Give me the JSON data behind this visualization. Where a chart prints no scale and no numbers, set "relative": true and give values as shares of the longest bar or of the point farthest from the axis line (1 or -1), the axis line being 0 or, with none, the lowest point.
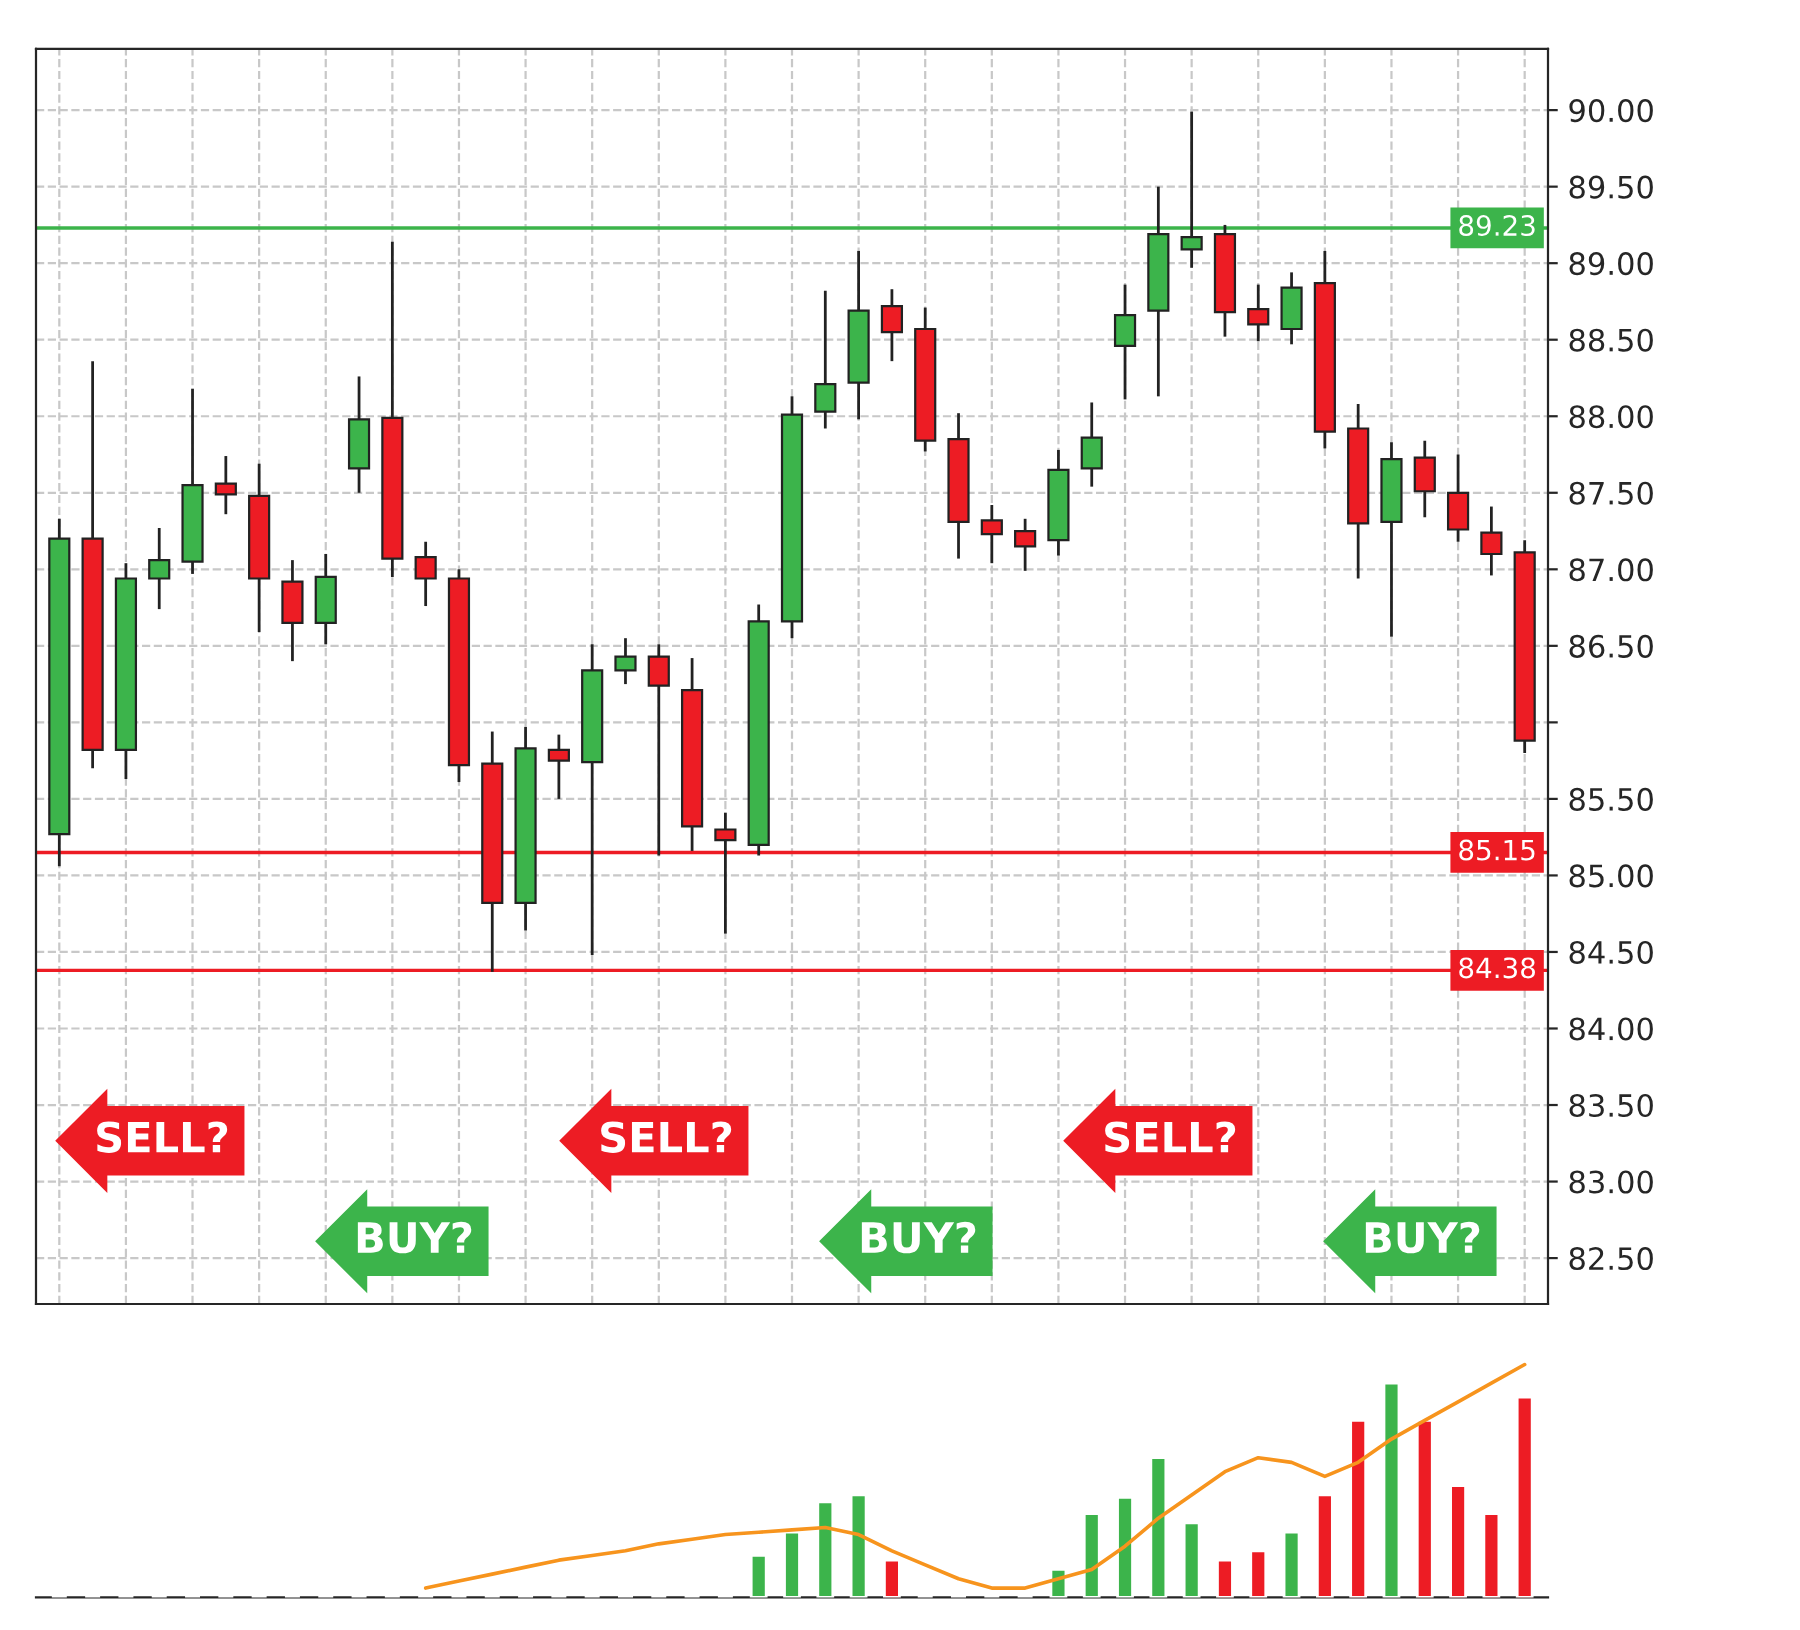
{
  "chart_data": [
    {
      "type": "candlestick",
      "categories": [
        null,
        null,
        null,
        null,
        null,
        null,
        null,
        null,
        null,
        null,
        null,
        null,
        null,
        null,
        null,
        null,
        null,
        null,
        null,
        null,
        null,
        null,
        null,
        null,
        null,
        null,
        null,
        null,
        null,
        null,
        null,
        null,
        null,
        null,
        null,
        null,
        null,
        null,
        null,
        null,
        null,
        null,
        null,
        null,
        null
      ],
      "ohlc": [
        [
          85.27,
          87.33,
          85.06,
          87.2
        ],
        [
          87.2,
          88.36,
          85.7,
          85.82
        ],
        [
          85.82,
          87.04,
          85.63,
          86.94
        ],
        [
          86.94,
          87.27,
          86.74,
          87.06
        ],
        [
          87.05,
          88.18,
          86.97,
          87.55
        ],
        [
          87.56,
          87.74,
          87.36,
          87.49
        ],
        [
          87.48,
          87.69,
          86.59,
          86.94
        ],
        [
          86.92,
          87.06,
          86.4,
          86.65
        ],
        [
          86.65,
          87.1,
          86.51,
          86.95
        ],
        [
          87.66,
          88.26,
          87.5,
          87.98
        ],
        [
          87.99,
          89.14,
          86.95,
          87.07
        ],
        [
          87.08,
          87.18,
          86.76,
          86.94
        ],
        [
          86.94,
          87.0,
          85.61,
          85.72
        ],
        [
          85.73,
          85.94,
          84.37,
          84.82
        ],
        [
          84.82,
          85.97,
          84.64,
          85.83
        ],
        [
          85.82,
          85.92,
          85.5,
          85.75
        ],
        [
          85.74,
          86.51,
          84.48,
          86.34
        ],
        [
          86.34,
          86.55,
          86.25,
          86.43
        ],
        [
          86.43,
          86.51,
          85.13,
          86.24
        ],
        [
          86.21,
          86.42,
          85.16,
          85.32
        ],
        [
          85.3,
          85.41,
          84.62,
          85.23
        ],
        [
          85.2,
          86.77,
          85.13,
          86.66
        ],
        [
          86.66,
          88.13,
          86.55,
          88.01
        ],
        [
          88.03,
          88.82,
          87.92,
          88.21
        ],
        [
          88.22,
          89.08,
          87.98,
          88.69
        ],
        [
          88.72,
          88.83,
          88.36,
          88.55
        ],
        [
          88.57,
          88.71,
          87.77,
          87.84
        ],
        [
          87.85,
          88.02,
          87.07,
          87.31
        ],
        [
          87.32,
          87.42,
          87.04,
          87.23
        ],
        [
          87.25,
          87.33,
          86.99,
          87.15
        ],
        [
          87.19,
          87.78,
          87.09,
          87.65
        ],
        [
          87.66,
          88.09,
          87.54,
          87.86
        ],
        [
          88.46,
          88.86,
          88.11,
          88.66
        ],
        [
          88.69,
          89.5,
          88.13,
          89.19
        ],
        [
          89.09,
          89.99,
          88.97,
          89.17
        ],
        [
          89.19,
          89.25,
          88.52,
          88.68
        ],
        [
          88.7,
          88.86,
          88.49,
          88.6
        ],
        [
          88.57,
          88.94,
          88.47,
          88.84
        ],
        [
          88.87,
          89.08,
          87.79,
          87.9
        ],
        [
          87.92,
          88.08,
          86.94,
          87.3
        ],
        [
          87.31,
          87.83,
          86.56,
          87.72
        ],
        [
          87.73,
          87.84,
          87.34,
          87.51
        ],
        [
          87.5,
          87.75,
          87.18,
          87.26
        ],
        [
          87.24,
          87.41,
          86.96,
          87.1
        ],
        [
          87.11,
          87.19,
          85.8,
          85.88
        ]
      ],
      "colors": [
        "#3cb44b",
        "#ed1c24",
        "#3cb44b",
        "#3cb44b",
        "#3cb44b",
        "#ed1c24",
        "#ed1c24",
        "#ed1c24",
        "#3cb44b",
        "#3cb44b",
        "#ed1c24",
        "#ed1c24",
        "#ed1c24",
        "#ed1c24",
        "#3cb44b",
        "#ed1c24",
        "#3cb44b",
        "#3cb44b",
        "#ed1c24",
        "#ed1c24",
        "#ed1c24",
        "#3cb44b",
        "#3cb44b",
        "#3cb44b",
        "#3cb44b",
        "#ed1c24",
        "#ed1c24",
        "#ed1c24",
        "#ed1c24",
        "#ed1c24",
        "#3cb44b",
        "#3cb44b",
        "#3cb44b",
        "#3cb44b",
        "#3cb44b",
        "#ed1c24",
        "#ed1c24",
        "#3cb44b",
        "#ed1c24",
        "#ed1c24",
        "#3cb44b",
        "#ed1c24",
        "#ed1c24",
        "#ed1c24",
        "#ed1c24"
      ],
      "ylim": [
        82.2,
        90.4
      ],
      "yticks": [
        {
          "value": 82.5,
          "label": "82.50"
        },
        {
          "value": 83,
          "label": "83.00"
        },
        {
          "value": 83.5,
          "label": "83.50"
        },
        {
          "value": 84,
          "label": "84.00"
        },
        {
          "value": 84.5,
          "label": "84.50"
        },
        {
          "value": 85,
          "label": "85.00"
        },
        {
          "value": 85.5,
          "label": "85.50"
        },
        {
          "value": 86,
          "label": null
        },
        {
          "value": 86.5,
          "label": "86.50"
        },
        {
          "value": 87,
          "label": "87.00"
        },
        {
          "value": 87.5,
          "label": "87.50"
        },
        {
          "value": 88,
          "label": "88.00"
        },
        {
          "value": 88.5,
          "label": "88.50"
        },
        {
          "value": 89,
          "label": "89.00"
        },
        {
          "value": 89.5,
          "label": "89.50"
        },
        {
          "value": 90,
          "label": "90.00"
        }
      ],
      "ref_lines": [
        {
          "axis": "y",
          "value": 89.23,
          "label": "89.23",
          "color": "#3cb44b"
        },
        {
          "axis": "y",
          "value": 85.15,
          "label": "85.15",
          "color": "#ed1c24"
        },
        {
          "axis": "y",
          "value": 84.38,
          "label": "84.38",
          "color": "#ed1c24"
        }
      ],
      "annotations": [
        "SELL?",
        "BUY?",
        "SELL?",
        "BUY?",
        "SELL?",
        "BUY?"
      ],
      "grid": true,
      "tick_labels": "y"
    },
    {
      "type": "bar",
      "relative": true,
      "tick_labels": false,
      "categories": [
        null,
        null,
        null,
        null,
        null,
        null,
        null,
        null,
        null,
        null,
        null,
        null,
        null,
        null,
        null,
        null,
        null,
        null,
        null,
        null,
        null,
        null,
        null,
        null,
        null,
        null,
        null,
        null,
        null,
        null,
        null,
        null,
        null,
        null,
        null,
        null,
        null,
        null,
        null,
        null,
        null,
        null,
        null,
        null,
        null
      ],
      "series": [
        {
          "type": "bar",
          "values": [
            null,
            null,
            null,
            null,
            null,
            null,
            null,
            null,
            null,
            null,
            null,
            null,
            null,
            null,
            null,
            null,
            null,
            null,
            null,
            null,
            null,
            0.18,
            0.28,
            0.41,
            0.44,
            0.16,
            null,
            null,
            null,
            null,
            0.12,
            0.36,
            0.43,
            0.6,
            0.32,
            0.16,
            0.2,
            0.28,
            0.44,
            0.76,
            0.92,
            0.76,
            0.48,
            0.36,
            0.86
          ],
          "colors": [
            "#3cb44b",
            "#ed1c24",
            "#3cb44b",
            "#3cb44b",
            "#3cb44b",
            "#ed1c24",
            "#ed1c24",
            "#ed1c24",
            "#3cb44b",
            "#3cb44b",
            "#ed1c24",
            "#ed1c24",
            "#ed1c24",
            "#ed1c24",
            "#3cb44b",
            "#ed1c24",
            "#3cb44b",
            "#3cb44b",
            "#ed1c24",
            "#ed1c24",
            "#ed1c24",
            "#3cb44b",
            "#3cb44b",
            "#3cb44b",
            "#3cb44b",
            "#ed1c24",
            "#ed1c24",
            "#ed1c24",
            "#ed1c24",
            "#ed1c24",
            "#3cb44b",
            "#3cb44b",
            "#3cb44b",
            "#3cb44b",
            "#3cb44b",
            "#ed1c24",
            "#ed1c24",
            "#3cb44b",
            "#ed1c24",
            "#ed1c24",
            "#3cb44b",
            "#ed1c24",
            "#ed1c24",
            "#ed1c24",
            "#ed1c24"
          ]
        },
        {
          "type": "line",
          "color": "#f7941d",
          "values": [
            null,
            null,
            null,
            null,
            null,
            null,
            null,
            null,
            null,
            null,
            null,
            0.04,
            0.07,
            0.1,
            0.13,
            0.16,
            0.18,
            0.2,
            0.23,
            0.25,
            0.27,
            0.28,
            0.29,
            0.3,
            0.27,
            0.2,
            0.14,
            0.08,
            0.04,
            0.04,
            0.08,
            0.12,
            0.22,
            0.34,
            0.44,
            0.54,
            0.6,
            0.58,
            0.52,
            0.58,
            0.68,
            0.76,
            0.84,
            0.92,
            1.0
          ]
        }
      ]
    }
  ]
}
